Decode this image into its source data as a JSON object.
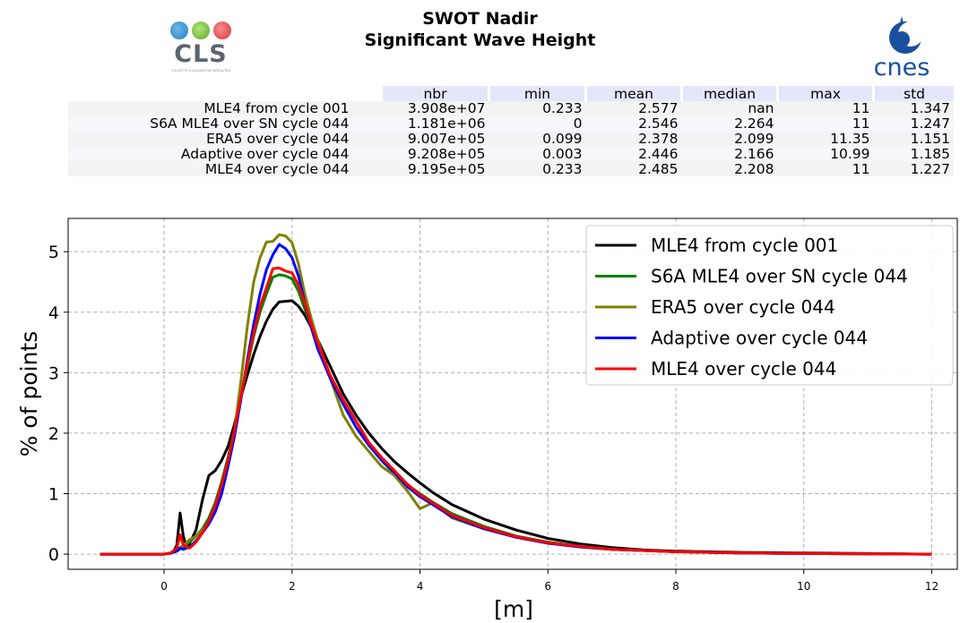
{
  "header": {
    "title_line1": "SWOT Nadir",
    "title_line2": "Significant Wave Height",
    "left_logo_text": "CLS",
    "left_logo_subtitle": "COLLECTE LOCALISATION SATELLITES",
    "right_logo_text": "cnes"
  },
  "stats_table": {
    "columns": [
      "nbr",
      "min",
      "mean",
      "median",
      "max",
      "std"
    ],
    "rows": [
      {
        "label": "MLE4 from cycle 001",
        "values": [
          "3.908e+07",
          "0.233",
          "2.577",
          "nan",
          "11",
          "1.347"
        ]
      },
      {
        "label": "S6A MLE4 over SN cycle 044",
        "values": [
          "1.181e+06",
          "0",
          "2.546",
          "2.264",
          "11",
          "1.247"
        ]
      },
      {
        "label": "ERA5 over cycle 044",
        "values": [
          "9.007e+05",
          "0.099",
          "2.378",
          "2.099",
          "11.35",
          "1.151"
        ]
      },
      {
        "label": "Adaptive over cycle 044",
        "values": [
          "9.208e+05",
          "0.003",
          "2.446",
          "2.166",
          "10.99",
          "1.185"
        ]
      },
      {
        "label": "MLE4 over cycle 044",
        "values": [
          "9.195e+05",
          "0.233",
          "2.485",
          "2.208",
          "11",
          "1.227"
        ]
      }
    ]
  },
  "chart_data": {
    "type": "line",
    "xlabel": "[m]",
    "ylabel": "% of points",
    "xlim": [
      -1.5,
      12.4
    ],
    "ylim": [
      -0.25,
      5.55
    ],
    "xticks": [
      0,
      2,
      4,
      6,
      8,
      10,
      12
    ],
    "yticks": [
      0,
      1,
      2,
      3,
      4,
      5
    ],
    "grid": true,
    "legend_position": "top-right",
    "series": [
      {
        "name": "MLE4 from cycle 001",
        "color": "#000000",
        "points": [
          [
            -1,
            0
          ],
          [
            0,
            0
          ],
          [
            0.1,
            0.02
          ],
          [
            0.15,
            0.05
          ],
          [
            0.2,
            0.15
          ],
          [
            0.25,
            0.68
          ],
          [
            0.3,
            0.3
          ],
          [
            0.35,
            0.12
          ],
          [
            0.4,
            0.18
          ],
          [
            0.5,
            0.4
          ],
          [
            0.6,
            0.9
          ],
          [
            0.7,
            1.3
          ],
          [
            0.8,
            1.38
          ],
          [
            0.9,
            1.55
          ],
          [
            1,
            1.78
          ],
          [
            1.1,
            2.15
          ],
          [
            1.2,
            2.6
          ],
          [
            1.3,
            2.95
          ],
          [
            1.4,
            3.3
          ],
          [
            1.5,
            3.6
          ],
          [
            1.6,
            3.85
          ],
          [
            1.7,
            4.05
          ],
          [
            1.8,
            4.17
          ],
          [
            1.9,
            4.18
          ],
          [
            2,
            4.19
          ],
          [
            2.1,
            4.1
          ],
          [
            2.2,
            3.95
          ],
          [
            2.4,
            3.55
          ],
          [
            2.6,
            3.1
          ],
          [
            2.8,
            2.65
          ],
          [
            3,
            2.3
          ],
          [
            3.2,
            2.0
          ],
          [
            3.4,
            1.75
          ],
          [
            3.6,
            1.53
          ],
          [
            3.8,
            1.35
          ],
          [
            4,
            1.18
          ],
          [
            4.2,
            1.02
          ],
          [
            4.5,
            0.82
          ],
          [
            5,
            0.58
          ],
          [
            5.5,
            0.4
          ],
          [
            6,
            0.26
          ],
          [
            6.5,
            0.17
          ],
          [
            7,
            0.11
          ],
          [
            7.5,
            0.07
          ],
          [
            8,
            0.05
          ],
          [
            9,
            0.03
          ],
          [
            10,
            0.02
          ],
          [
            11,
            0.01
          ],
          [
            12,
            0.0
          ]
        ]
      },
      {
        "name": "S6A MLE4 over SN cycle 044",
        "color": "#008000",
        "points": [
          [
            -1,
            0
          ],
          [
            0,
            0
          ],
          [
            0.1,
            0.01
          ],
          [
            0.2,
            0.05
          ],
          [
            0.3,
            0.12
          ],
          [
            0.4,
            0.2
          ],
          [
            0.5,
            0.3
          ],
          [
            0.6,
            0.42
          ],
          [
            0.7,
            0.6
          ],
          [
            0.8,
            0.85
          ],
          [
            0.9,
            1.2
          ],
          [
            1,
            1.6
          ],
          [
            1.1,
            2.05
          ],
          [
            1.2,
            2.6
          ],
          [
            1.3,
            3.1
          ],
          [
            1.4,
            3.6
          ],
          [
            1.5,
            4.0
          ],
          [
            1.6,
            4.3
          ],
          [
            1.7,
            4.58
          ],
          [
            1.8,
            4.62
          ],
          [
            1.9,
            4.6
          ],
          [
            2,
            4.55
          ],
          [
            2.1,
            4.35
          ],
          [
            2.2,
            4.05
          ],
          [
            2.3,
            3.75
          ],
          [
            2.4,
            3.45
          ],
          [
            2.6,
            2.95
          ],
          [
            2.8,
            2.55
          ],
          [
            3,
            2.2
          ],
          [
            3.2,
            1.85
          ],
          [
            3.4,
            1.55
          ],
          [
            3.6,
            1.33
          ],
          [
            3.8,
            1.15
          ],
          [
            4,
            1.0
          ],
          [
            4.2,
            0.86
          ],
          [
            4.5,
            0.67
          ],
          [
            5,
            0.46
          ],
          [
            5.5,
            0.3
          ],
          [
            6,
            0.2
          ],
          [
            6.5,
            0.13
          ],
          [
            7,
            0.08
          ],
          [
            8,
            0.04
          ],
          [
            9,
            0.02
          ],
          [
            10,
            0.01
          ],
          [
            11,
            0.005
          ],
          [
            12,
            0
          ]
        ]
      },
      {
        "name": "ERA5 over cycle 044",
        "color": "#808000",
        "points": [
          [
            -1,
            0
          ],
          [
            0,
            0
          ],
          [
            0.1,
            0.02
          ],
          [
            0.2,
            0.08
          ],
          [
            0.3,
            0.14
          ],
          [
            0.4,
            0.24
          ],
          [
            0.5,
            0.3
          ],
          [
            0.6,
            0.4
          ],
          [
            0.7,
            0.5
          ],
          [
            0.8,
            0.7
          ],
          [
            0.9,
            1.0
          ],
          [
            1,
            1.48
          ],
          [
            1.1,
            2.05
          ],
          [
            1.2,
            2.85
          ],
          [
            1.3,
            3.75
          ],
          [
            1.4,
            4.5
          ],
          [
            1.5,
            4.9
          ],
          [
            1.6,
            5.16
          ],
          [
            1.7,
            5.17
          ],
          [
            1.8,
            5.28
          ],
          [
            1.9,
            5.26
          ],
          [
            2,
            5.15
          ],
          [
            2.1,
            4.8
          ],
          [
            2.2,
            4.3
          ],
          [
            2.3,
            3.9
          ],
          [
            2.4,
            3.55
          ],
          [
            2.6,
            2.9
          ],
          [
            2.8,
            2.3
          ],
          [
            3,
            1.95
          ],
          [
            3.2,
            1.7
          ],
          [
            3.4,
            1.45
          ],
          [
            3.6,
            1.3
          ],
          [
            3.8,
            1.05
          ],
          [
            3.9,
            0.9
          ],
          [
            4,
            0.75
          ],
          [
            4.1,
            0.8
          ],
          [
            4.2,
            0.85
          ],
          [
            4.5,
            0.6
          ],
          [
            5,
            0.42
          ],
          [
            5.5,
            0.28
          ],
          [
            6,
            0.18
          ],
          [
            6.5,
            0.12
          ],
          [
            7,
            0.08
          ],
          [
            8,
            0.04
          ],
          [
            9,
            0.02
          ],
          [
            10,
            0.01
          ],
          [
            11,
            0.005
          ],
          [
            12,
            0
          ]
        ]
      },
      {
        "name": "Adaptive over cycle 044",
        "color": "#0000ff",
        "points": [
          [
            -1,
            0
          ],
          [
            0,
            0
          ],
          [
            0.1,
            0.02
          ],
          [
            0.2,
            0.05
          ],
          [
            0.25,
            0.1
          ],
          [
            0.3,
            0.08
          ],
          [
            0.4,
            0.12
          ],
          [
            0.5,
            0.22
          ],
          [
            0.6,
            0.35
          ],
          [
            0.7,
            0.5
          ],
          [
            0.8,
            0.7
          ],
          [
            0.9,
            1.0
          ],
          [
            1,
            1.45
          ],
          [
            1.1,
            1.95
          ],
          [
            1.2,
            2.55
          ],
          [
            1.3,
            3.2
          ],
          [
            1.4,
            3.8
          ],
          [
            1.5,
            4.3
          ],
          [
            1.6,
            4.7
          ],
          [
            1.7,
            4.95
          ],
          [
            1.8,
            5.12
          ],
          [
            1.9,
            5.05
          ],
          [
            2,
            4.9
          ],
          [
            2.1,
            4.6
          ],
          [
            2.2,
            4.15
          ],
          [
            2.3,
            3.75
          ],
          [
            2.4,
            3.4
          ],
          [
            2.6,
            2.9
          ],
          [
            2.8,
            2.48
          ],
          [
            3,
            2.1
          ],
          [
            3.2,
            1.8
          ],
          [
            3.4,
            1.55
          ],
          [
            3.6,
            1.35
          ],
          [
            3.8,
            1.12
          ],
          [
            4,
            0.95
          ],
          [
            4.2,
            0.82
          ],
          [
            4.5,
            0.62
          ],
          [
            5,
            0.42
          ],
          [
            5.5,
            0.28
          ],
          [
            6,
            0.18
          ],
          [
            6.5,
            0.12
          ],
          [
            7,
            0.08
          ],
          [
            8,
            0.04
          ],
          [
            9,
            0.02
          ],
          [
            10,
            0.01
          ],
          [
            11,
            0.005
          ],
          [
            12,
            0
          ]
        ]
      },
      {
        "name": "MLE4 over cycle 044",
        "color": "#ff0000",
        "points": [
          [
            -1,
            0
          ],
          [
            0,
            0
          ],
          [
            0.1,
            0.02
          ],
          [
            0.2,
            0.1
          ],
          [
            0.25,
            0.32
          ],
          [
            0.3,
            0.15
          ],
          [
            0.4,
            0.1
          ],
          [
            0.5,
            0.2
          ],
          [
            0.6,
            0.35
          ],
          [
            0.7,
            0.55
          ],
          [
            0.8,
            0.8
          ],
          [
            0.9,
            1.15
          ],
          [
            1,
            1.55
          ],
          [
            1.1,
            2.05
          ],
          [
            1.2,
            2.6
          ],
          [
            1.3,
            3.15
          ],
          [
            1.4,
            3.65
          ],
          [
            1.5,
            4.1
          ],
          [
            1.6,
            4.4
          ],
          [
            1.7,
            4.72
          ],
          [
            1.8,
            4.73
          ],
          [
            1.9,
            4.68
          ],
          [
            2,
            4.65
          ],
          [
            2.1,
            4.45
          ],
          [
            2.2,
            4.15
          ],
          [
            2.3,
            3.8
          ],
          [
            2.4,
            3.5
          ],
          [
            2.6,
            2.95
          ],
          [
            2.8,
            2.55
          ],
          [
            3,
            2.2
          ],
          [
            3.2,
            1.85
          ],
          [
            3.4,
            1.6
          ],
          [
            3.6,
            1.38
          ],
          [
            3.8,
            1.16
          ],
          [
            4,
            0.98
          ],
          [
            4.2,
            0.85
          ],
          [
            4.5,
            0.64
          ],
          [
            5,
            0.44
          ],
          [
            5.5,
            0.29
          ],
          [
            6,
            0.19
          ],
          [
            6.5,
            0.13
          ],
          [
            7,
            0.08
          ],
          [
            8,
            0.04
          ],
          [
            9,
            0.02
          ],
          [
            10,
            0.01
          ],
          [
            11,
            0.005
          ],
          [
            12,
            0
          ]
        ]
      }
    ]
  }
}
